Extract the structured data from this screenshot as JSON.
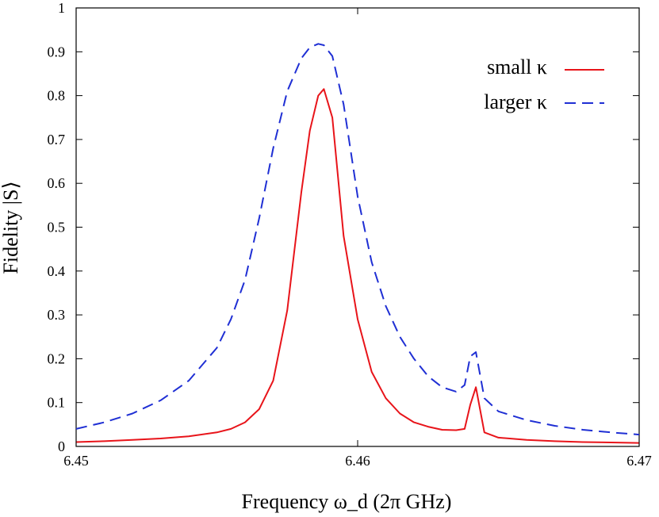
{
  "chart_data": {
    "type": "line",
    "xlabel": "Frequency ω_d (2π GHz)",
    "ylabel": "Fidelity |S⟩",
    "xlim": [
      6.45,
      6.47
    ],
    "ylim": [
      0,
      1
    ],
    "xticks": [
      "6.45",
      "6.46",
      "6.47"
    ],
    "yticks": [
      "0",
      "0.1",
      "0.2",
      "0.3",
      "0.4",
      "0.5",
      "0.6",
      "0.7",
      "0.8",
      "0.9",
      "1"
    ],
    "legend_position": "top-right",
    "grid": false,
    "series": [
      {
        "name": "small κ",
        "color": "#e8141a",
        "style": "solid",
        "x": [
          6.45,
          6.451,
          6.452,
          6.453,
          6.454,
          6.455,
          6.4555,
          6.456,
          6.4565,
          6.457,
          6.4575,
          6.458,
          6.4583,
          6.4586,
          6.4588,
          6.4591,
          6.4595,
          6.46,
          6.4605,
          6.461,
          6.4615,
          6.462,
          6.4625,
          6.463,
          6.4635,
          6.4638,
          6.464,
          6.4642,
          6.4645,
          6.465,
          6.466,
          6.467,
          6.468,
          6.469,
          6.47
        ],
        "y": [
          0.01,
          0.012,
          0.015,
          0.018,
          0.023,
          0.032,
          0.04,
          0.055,
          0.085,
          0.15,
          0.31,
          0.58,
          0.72,
          0.8,
          0.815,
          0.75,
          0.48,
          0.29,
          0.17,
          0.11,
          0.075,
          0.055,
          0.045,
          0.038,
          0.037,
          0.04,
          0.095,
          0.135,
          0.032,
          0.02,
          0.015,
          0.012,
          0.01,
          0.009,
          0.008
        ]
      },
      {
        "name": "larger κ",
        "color": "#1f2fd4",
        "style": "dashed",
        "x": [
          6.45,
          6.451,
          6.452,
          6.453,
          6.454,
          6.455,
          6.4555,
          6.456,
          6.4565,
          6.457,
          6.4575,
          6.458,
          6.4583,
          6.4586,
          6.4588,
          6.4591,
          6.4595,
          6.46,
          6.4605,
          6.461,
          6.4615,
          6.462,
          6.4625,
          6.463,
          6.4635,
          6.4638,
          6.464,
          6.4642,
          6.4645,
          6.465,
          6.466,
          6.467,
          6.468,
          6.469,
          6.47
        ],
        "y": [
          0.04,
          0.055,
          0.075,
          0.105,
          0.15,
          0.225,
          0.29,
          0.38,
          0.52,
          0.68,
          0.81,
          0.885,
          0.91,
          0.918,
          0.915,
          0.89,
          0.78,
          0.57,
          0.42,
          0.32,
          0.25,
          0.2,
          0.16,
          0.135,
          0.125,
          0.14,
          0.205,
          0.215,
          0.11,
          0.08,
          0.06,
          0.047,
          0.038,
          0.032,
          0.027
        ]
      }
    ]
  }
}
